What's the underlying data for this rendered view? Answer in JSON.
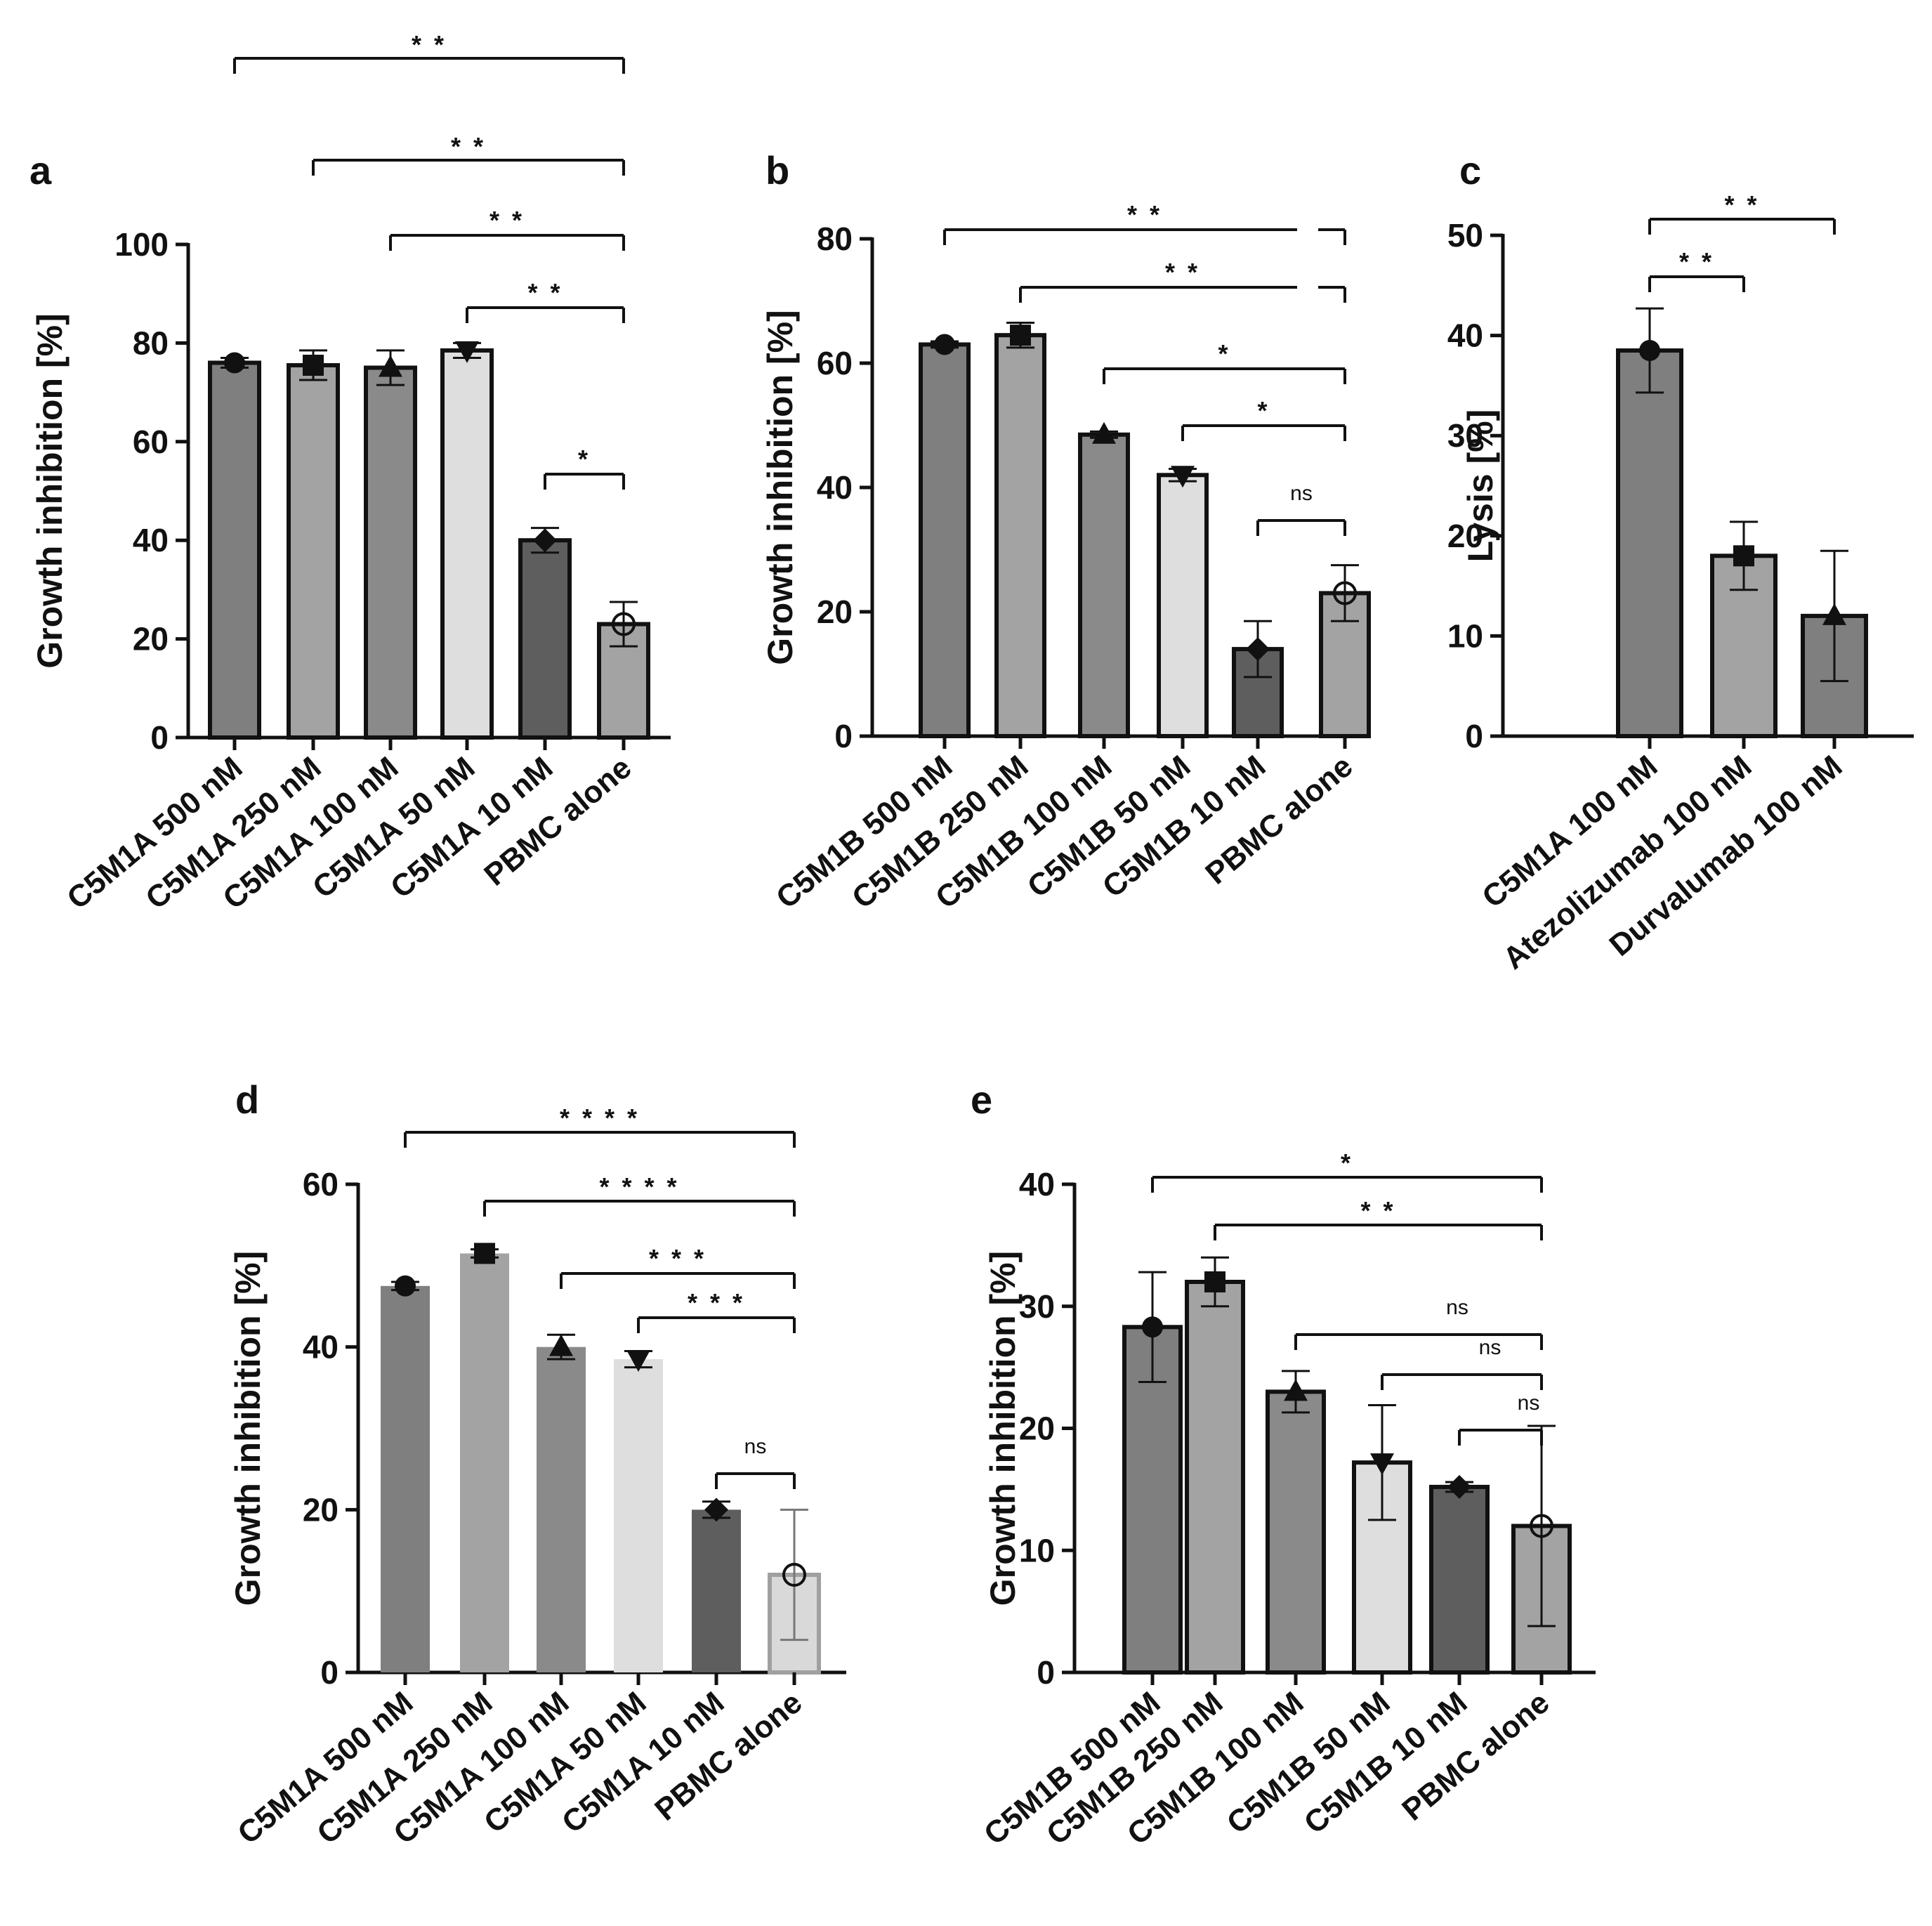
{
  "figure": {
    "panels": [
      "a",
      "b",
      "c",
      "d",
      "e"
    ]
  },
  "chart_data": [
    {
      "panel": "a",
      "type": "bar",
      "ylabel": "Growth inhibition [%]",
      "ylim": [
        0,
        100
      ],
      "yticks": [
        0,
        20,
        40,
        60,
        80,
        100
      ],
      "categories": [
        "C5M1A 500 nM",
        "C5M1A 250 nM",
        "C5M1A 100 nM",
        "C5M1A 50 nM",
        "C5M1A 10 nM",
        "PBMC alone"
      ],
      "values": [
        76,
        75.5,
        75,
        78.5,
        40,
        23
      ],
      "errors": [
        1,
        3,
        3.5,
        1.5,
        2.5,
        4.5
      ],
      "fills": [
        "#7f7f7f",
        "#a3a3a3",
        "#8a8a8a",
        "#dedede",
        "#5e5e5e",
        "#a3a3a3"
      ],
      "markers": [
        "circle",
        "square",
        "triangle-up",
        "triangle-down",
        "diamond",
        "open-circle"
      ],
      "comparisons": [
        {
          "from": 0,
          "to": 5,
          "label": "* *"
        },
        {
          "from": 1,
          "to": 5,
          "label": "* *"
        },
        {
          "from": 2,
          "to": 5,
          "label": "* *"
        },
        {
          "from": 3,
          "to": 5,
          "label": "* *"
        },
        {
          "from": 4,
          "to": 5,
          "label": "*"
        }
      ]
    },
    {
      "panel": "b",
      "type": "bar",
      "ylabel": "Growth inhibition [%]",
      "ylim": [
        0,
        80
      ],
      "yticks": [
        0,
        20,
        40,
        60,
        80
      ],
      "categories": [
        "C5M1B 500 nM",
        "C5M1B 250 nM",
        "C5M1B 100 nM",
        "C5M1B 50 nM",
        "C5M1B 10 nM",
        "PBMC alone"
      ],
      "values": [
        63,
        64.5,
        48.5,
        42,
        14,
        23
      ],
      "errors": [
        0.5,
        2,
        0.5,
        1,
        4.5,
        4.5
      ],
      "fills": [
        "#7f7f7f",
        "#a3a3a3",
        "#8a8a8a",
        "#dedede",
        "#5e5e5e",
        "#a3a3a3"
      ],
      "markers": [
        "circle",
        "square",
        "triangle-up",
        "triangle-down",
        "diamond",
        "open-circle"
      ],
      "comparisons": [
        {
          "from": 0,
          "to": 5,
          "label": "* *"
        },
        {
          "from": 1,
          "to": 5,
          "label": "* *"
        },
        {
          "from": 2,
          "to": 5,
          "label": "*"
        },
        {
          "from": 3,
          "to": 5,
          "label": "*"
        },
        {
          "from": 4,
          "to": 5,
          "label": "ns"
        }
      ]
    },
    {
      "panel": "c",
      "type": "bar",
      "ylabel": "Lysis [%]",
      "ylim": [
        0,
        50
      ],
      "yticks": [
        0,
        10,
        20,
        30,
        40,
        50
      ],
      "categories": [
        "C5M1A 100 nM",
        "Atezolizumab 100 nM",
        "Durvalumab 100 nM"
      ],
      "values": [
        38.5,
        18,
        12
      ],
      "errors": [
        4.2,
        3.4,
        6.5
      ],
      "fills": [
        "#7f7f7f",
        "#a3a3a3",
        "#7f7f7f"
      ],
      "markers": [
        "circle",
        "square",
        "triangle-up"
      ],
      "comparisons": [
        {
          "from": 0,
          "to": 2,
          "label": "* *"
        },
        {
          "from": 0,
          "to": 1,
          "label": "* *"
        }
      ]
    },
    {
      "panel": "d",
      "type": "bar",
      "ylabel": "Growth inhibition [%]",
      "ylim": [
        0,
        60
      ],
      "yticks": [
        0,
        20,
        40,
        60
      ],
      "categories": [
        "C5M1A 500 nM",
        "C5M1A 250 nM",
        "C5M1A 100 nM",
        "C5M1A 50 nM",
        "C5M1A 10 nM",
        "PBMC alone"
      ],
      "values": [
        47.5,
        51.5,
        40,
        38.5,
        20,
        12
      ],
      "errors": [
        0.5,
        0.5,
        1.5,
        1,
        1,
        8
      ],
      "fills": [
        "#7f7f7f",
        "#a3a3a3",
        "#8a8a8a",
        "#dedede",
        "#5e5e5e",
        "#d9d9d9"
      ],
      "markers": [
        "circle",
        "square",
        "triangle-up",
        "triangle-down",
        "diamond",
        "open-circle"
      ],
      "comparisons": [
        {
          "from": 0,
          "to": 5,
          "label": "* * * *"
        },
        {
          "from": 1,
          "to": 5,
          "label": "* * * *"
        },
        {
          "from": 2,
          "to": 5,
          "label": "* * *"
        },
        {
          "from": 3,
          "to": 5,
          "label": "* * *"
        },
        {
          "from": 4,
          "to": 5,
          "label": "ns"
        }
      ]
    },
    {
      "panel": "e",
      "type": "bar",
      "ylabel": "Growth inhibition [%]",
      "ylim": [
        0,
        40
      ],
      "yticks": [
        0,
        10,
        20,
        30,
        40
      ],
      "categories": [
        "C5M1B 500 nM",
        "C5M1B 250 nM",
        "C5M1B 100 nM",
        "C5M1B 50 nM",
        "C5M1B 10 nM",
        "PBMC alone"
      ],
      "values": [
        28.3,
        32,
        23,
        17.2,
        15.2,
        12
      ],
      "errors": [
        4.5,
        2,
        1.7,
        4.7,
        0.4,
        8.2
      ],
      "fills": [
        "#7f7f7f",
        "#a3a3a3",
        "#8a8a8a",
        "#dedede",
        "#5e5e5e",
        "#a3a3a3"
      ],
      "markers": [
        "circle",
        "square",
        "triangle-up",
        "triangle-down",
        "diamond",
        "open-circle"
      ],
      "comparisons": [
        {
          "from": 0,
          "to": 5,
          "label": "*"
        },
        {
          "from": 1,
          "to": 5,
          "label": "* *"
        },
        {
          "from": 2,
          "to": 5,
          "label": "ns"
        },
        {
          "from": 3,
          "to": 5,
          "label": "ns"
        },
        {
          "from": 4,
          "to": 5,
          "label": "ns"
        }
      ]
    }
  ]
}
